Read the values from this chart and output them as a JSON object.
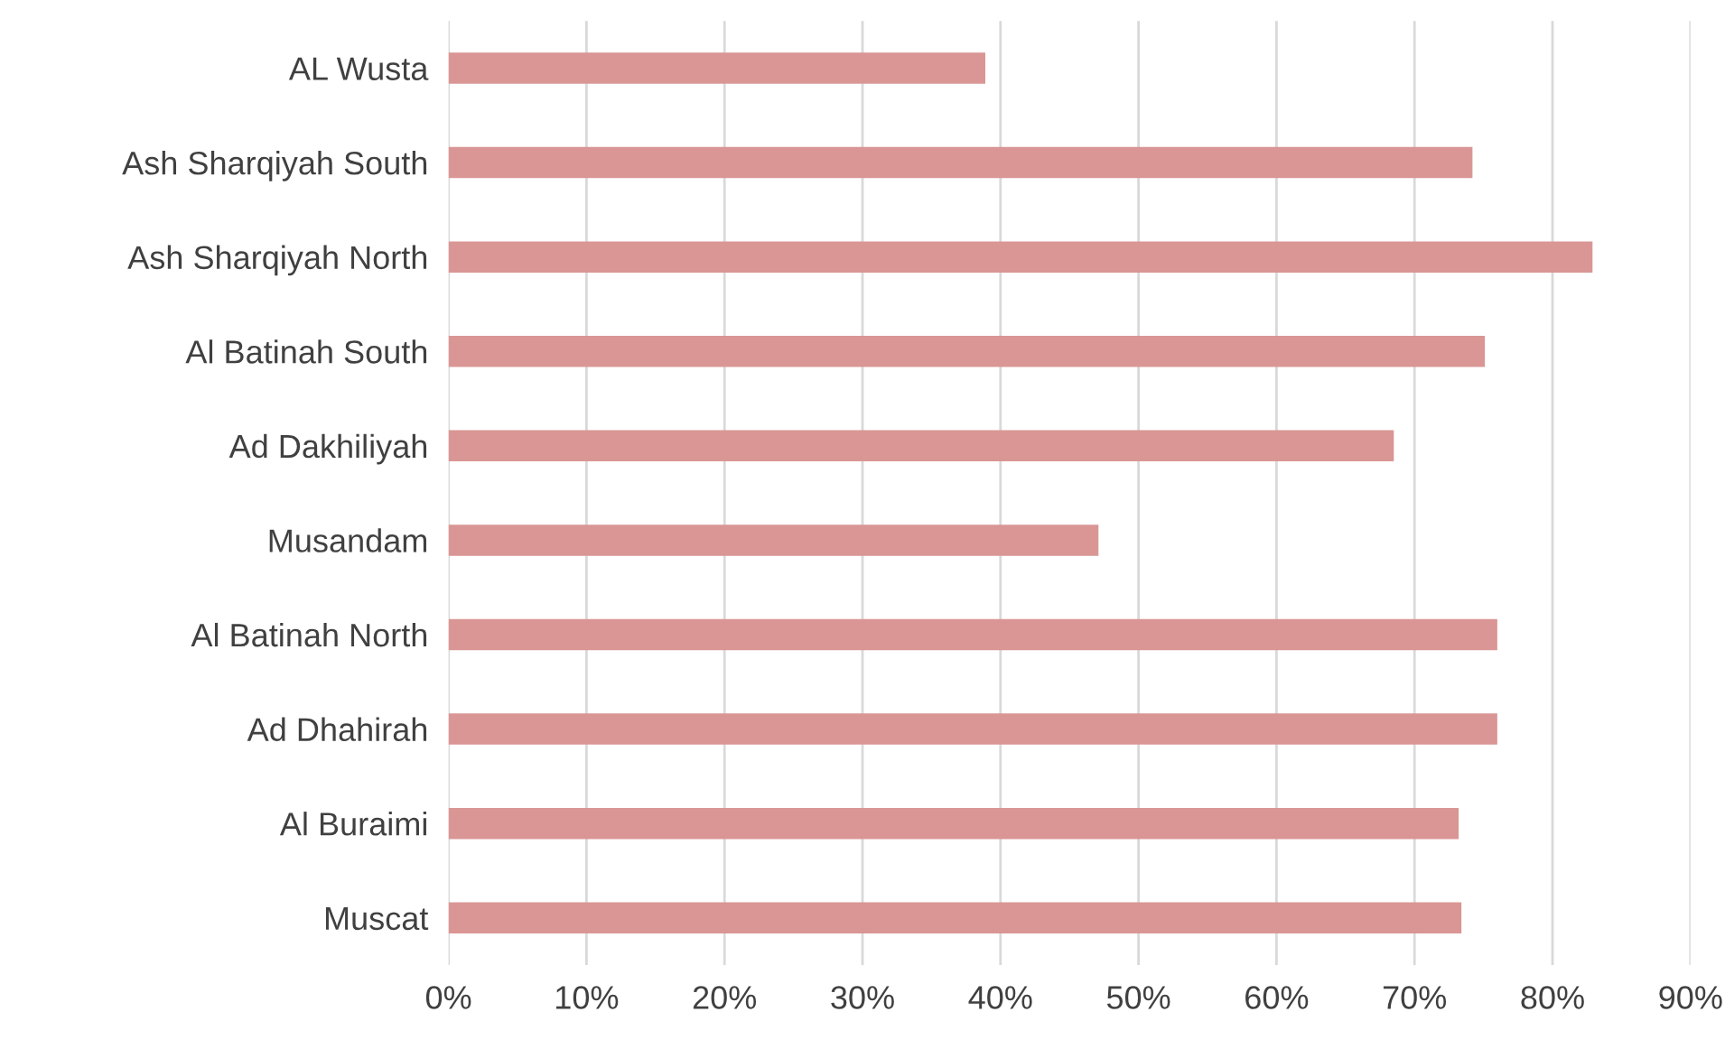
{
  "chart_data": {
    "type": "bar",
    "orientation": "horizontal",
    "categories": [
      "AL Wusta",
      "Ash Sharqiyah South",
      "Ash Sharqiyah North",
      "Al Batinah South",
      "Ad Dakhiliyah",
      "Musandam",
      "Al Batinah North",
      "Ad Dhahirah",
      "Al Buraimi",
      "Muscat"
    ],
    "values": [
      38.9,
      74.2,
      82.9,
      75.1,
      68.5,
      47.1,
      76.0,
      76.0,
      73.2,
      73.4
    ],
    "color": "#d99694",
    "xlim": [
      0,
      90
    ],
    "xticks": [
      {
        "value": 0,
        "label": "0%"
      },
      {
        "value": 10,
        "label": "10%"
      },
      {
        "value": 20,
        "label": "20%"
      },
      {
        "value": 30,
        "label": "30%"
      },
      {
        "value": 40,
        "label": "40%"
      },
      {
        "value": 50,
        "label": "50%"
      },
      {
        "value": 60,
        "label": "60%"
      },
      {
        "value": 70,
        "label": "70%"
      },
      {
        "value": 80,
        "label": "80%"
      },
      {
        "value": 90,
        "label": "90%"
      }
    ],
    "grid": "x"
  }
}
